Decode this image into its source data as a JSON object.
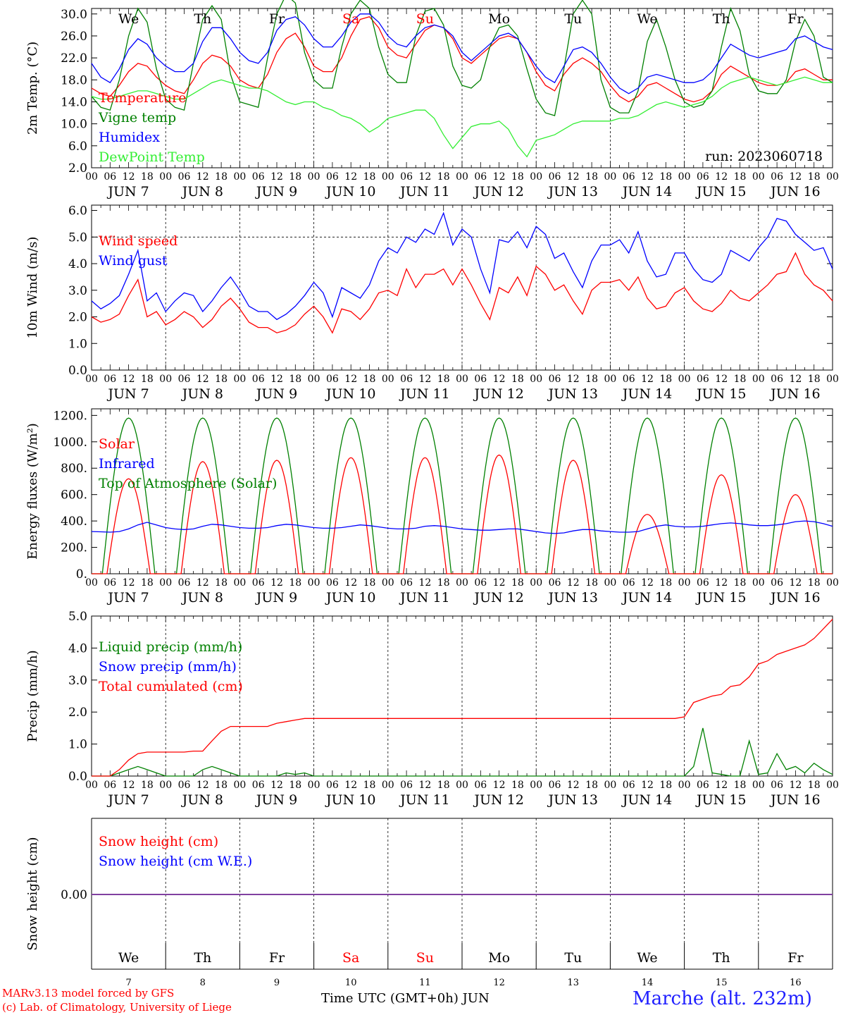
{
  "days": {
    "weekday_labels": [
      "We",
      "Th",
      "Fr",
      "Sa",
      "Su",
      "Mo",
      "Tu",
      "We",
      "Th",
      "Fr"
    ],
    "weekend_flags": [
      false,
      false,
      false,
      true,
      true,
      false,
      false,
      false,
      false,
      false
    ],
    "date_labels": [
      "JUN  7",
      "JUN  8",
      "JUN  9",
      "JUN 10",
      "JUN 11",
      "JUN 12",
      "JUN 13",
      "JUN 14",
      "JUN 15",
      "JUN 16"
    ],
    "day_numbers": [
      "7",
      "8",
      "9",
      "10",
      "11",
      "12",
      "13",
      "14",
      "15",
      "16"
    ],
    "hour_ticks": [
      "00",
      "06",
      "12",
      "18"
    ],
    "final_hour": "00"
  },
  "colors": {
    "red": "#ff0000",
    "green": "#008000",
    "blue": "#0000ff",
    "lightgreen": "#33ee33",
    "purple": "#8040a0"
  },
  "footer": {
    "model": "MARv3.13 model forced by GFS",
    "copyright": "(c) Lab. of Climatology, University of Liege",
    "time_axis": "Time UTC (GMT+0h) JUN",
    "station": "Marche (alt. 232m)"
  },
  "chart_data": [
    {
      "type": "line",
      "ylabel": "2m Temp. (°C)",
      "ylim": [
        2,
        31
      ],
      "yticks": [
        "2.0",
        "6.0",
        "10.0",
        "14.0",
        "18.0",
        "22.0",
        "26.0",
        "30.0"
      ],
      "run_label": "run: 2023060718",
      "x_unit": "hours from 2023-06-07 00 UTC (3-hourly)",
      "series": [
        {
          "name": "Temperature",
          "color": "red",
          "values": [
            16.5,
            15.5,
            15.0,
            17.0,
            19.5,
            21.0,
            20.5,
            18.5,
            17.0,
            16.0,
            15.5,
            18.0,
            21.0,
            22.5,
            22.0,
            20.5,
            18.0,
            17.0,
            16.5,
            19.0,
            23.0,
            25.5,
            26.5,
            24.0,
            20.5,
            19.5,
            19.5,
            22.0,
            26.0,
            29.0,
            29.5,
            27.5,
            24.0,
            22.5,
            22.0,
            24.5,
            27.0,
            28.0,
            27.5,
            25.5,
            22.0,
            21.0,
            22.5,
            24.0,
            25.5,
            26.0,
            25.5,
            23.0,
            19.5,
            17.0,
            16.0,
            19.0,
            21.0,
            22.0,
            21.0,
            19.5,
            17.0,
            15.0,
            14.0,
            15.0,
            17.0,
            17.5,
            16.5,
            15.5,
            14.5,
            14.0,
            14.5,
            16.0,
            19.0,
            20.5,
            19.5,
            18.5,
            17.5,
            17.0,
            17.0,
            17.5,
            19.5,
            20.0,
            19.0,
            18.0,
            18.0
          ]
        },
        {
          "name": "Vigne temp",
          "color": "green",
          "values": [
            15.0,
            13.0,
            12.5,
            18.0,
            26.0,
            31.0,
            28.5,
            20.0,
            14.5,
            13.0,
            12.5,
            21.0,
            29.0,
            31.5,
            29.0,
            19.0,
            14.0,
            13.5,
            13.0,
            22.0,
            30.0,
            33.5,
            32.0,
            23.0,
            18.0,
            16.5,
            16.5,
            24.0,
            30.0,
            32.5,
            31.0,
            24.0,
            19.0,
            17.5,
            17.5,
            26.0,
            30.5,
            31.0,
            28.0,
            20.5,
            17.0,
            16.5,
            18.0,
            24.0,
            27.5,
            28.0,
            26.0,
            20.0,
            14.5,
            12.0,
            11.5,
            20.0,
            30.0,
            32.5,
            30.0,
            18.0,
            13.0,
            12.0,
            12.0,
            16.0,
            25.0,
            29.0,
            24.0,
            18.0,
            14.0,
            13.0,
            13.5,
            16.0,
            24.0,
            31.0,
            27.0,
            19.0,
            16.0,
            15.5,
            15.5,
            18.0,
            25.0,
            29.0,
            26.0,
            18.5,
            17.5
          ]
        },
        {
          "name": "Humidex",
          "color": "blue",
          "values": [
            21.0,
            18.5,
            17.5,
            20.0,
            23.5,
            25.5,
            24.5,
            22.0,
            20.5,
            19.5,
            19.5,
            21.0,
            25.0,
            27.5,
            27.5,
            25.5,
            23.0,
            21.5,
            21.0,
            23.0,
            27.0,
            29.0,
            29.5,
            28.0,
            25.5,
            24.0,
            24.0,
            26.0,
            28.5,
            30.0,
            30.0,
            28.5,
            26.0,
            24.5,
            24.0,
            26.0,
            27.5,
            28.0,
            27.5,
            26.0,
            23.0,
            21.5,
            23.0,
            24.5,
            26.0,
            26.5,
            25.5,
            23.0,
            20.5,
            18.5,
            17.5,
            20.5,
            23.5,
            24.0,
            23.0,
            21.0,
            18.5,
            16.5,
            15.5,
            16.5,
            18.5,
            19.0,
            18.5,
            18.0,
            17.5,
            17.5,
            18.0,
            19.5,
            22.0,
            24.5,
            23.5,
            22.5,
            22.0,
            22.5,
            23.0,
            23.5,
            25.5,
            26.0,
            25.0,
            24.0,
            23.5
          ]
        },
        {
          "name": "DewPoint Temp",
          "color": "lightgreen",
          "values": [
            15.0,
            14.5,
            14.5,
            15.0,
            15.5,
            16.0,
            16.0,
            15.5,
            15.0,
            14.5,
            14.5,
            15.5,
            16.5,
            17.5,
            18.0,
            17.5,
            17.0,
            16.5,
            16.5,
            16.0,
            15.0,
            14.0,
            13.5,
            14.0,
            14.0,
            13.0,
            12.5,
            11.5,
            11.0,
            10.0,
            8.5,
            9.5,
            11.0,
            11.5,
            12.0,
            12.5,
            12.5,
            11.0,
            8.0,
            5.5,
            7.5,
            9.5,
            10.0,
            10.0,
            10.5,
            9.0,
            6.0,
            4.0,
            7.0,
            7.5,
            8.0,
            9.0,
            10.0,
            10.5,
            10.5,
            10.5,
            10.5,
            11.0,
            11.0,
            11.5,
            12.5,
            13.5,
            14.0,
            13.5,
            13.0,
            13.5,
            14.0,
            15.0,
            16.5,
            17.5,
            18.0,
            18.5,
            18.0,
            17.5,
            17.0,
            17.5,
            18.0,
            18.5,
            18.0,
            17.5,
            17.5
          ]
        }
      ]
    },
    {
      "type": "line",
      "ylabel": "10m Wind (m/s)",
      "ylim": [
        0,
        6.2
      ],
      "yticks": [
        "0.0",
        "1.0",
        "2.0",
        "3.0",
        "4.0",
        "5.0",
        "6.0"
      ],
      "ref_line": 5.0,
      "series": [
        {
          "name": "Wind speed",
          "color": "red",
          "values": [
            2.0,
            1.8,
            1.9,
            2.1,
            2.8,
            3.4,
            2.0,
            2.2,
            1.7,
            1.9,
            2.2,
            2.0,
            1.6,
            1.9,
            2.4,
            2.7,
            2.3,
            1.8,
            1.6,
            1.6,
            1.4,
            1.5,
            1.7,
            2.1,
            2.4,
            2.0,
            1.4,
            2.3,
            2.2,
            1.9,
            2.3,
            2.9,
            3.0,
            2.8,
            3.8,
            3.1,
            3.6,
            3.6,
            3.8,
            3.2,
            3.8,
            3.2,
            2.5,
            1.9,
            3.1,
            2.9,
            3.5,
            2.8,
            3.9,
            3.6,
            3.0,
            3.2,
            2.6,
            2.1,
            3.0,
            3.3,
            3.3,
            3.4,
            3.0,
            3.5,
            2.7,
            2.3,
            2.4,
            2.9,
            3.1,
            2.6,
            2.3,
            2.2,
            2.5,
            3.0,
            2.7,
            2.6,
            2.9,
            3.2,
            3.6,
            3.7,
            4.4,
            3.6,
            3.2,
            3.0,
            2.6
          ]
        },
        {
          "name": "Wind gust",
          "color": "blue",
          "values": [
            2.6,
            2.3,
            2.5,
            2.8,
            3.6,
            4.5,
            2.6,
            2.9,
            2.2,
            2.6,
            2.9,
            2.8,
            2.2,
            2.6,
            3.1,
            3.5,
            3.0,
            2.4,
            2.2,
            2.2,
            1.9,
            2.1,
            2.4,
            2.8,
            3.3,
            2.9,
            2.0,
            3.1,
            2.9,
            2.7,
            3.2,
            4.1,
            4.6,
            4.4,
            5.0,
            4.8,
            5.3,
            5.1,
            5.9,
            4.7,
            5.3,
            5.0,
            3.8,
            2.9,
            4.9,
            4.8,
            5.2,
            4.6,
            5.4,
            5.1,
            4.2,
            4.4,
            3.7,
            3.1,
            4.1,
            4.7,
            4.7,
            4.9,
            4.4,
            5.2,
            4.1,
            3.5,
            3.6,
            4.4,
            4.4,
            3.8,
            3.4,
            3.3,
            3.6,
            4.5,
            4.3,
            4.1,
            4.6,
            5.0,
            5.7,
            5.6,
            5.1,
            4.8,
            4.5,
            4.6,
            3.8
          ]
        }
      ]
    },
    {
      "type": "line",
      "ylabel": "Energy fluxes (W/m²)",
      "ylim": [
        0,
        1250
      ],
      "yticks": [
        "0.",
        "200.",
        "400.",
        "600.",
        "800.",
        "1000.",
        "1200."
      ],
      "series": [
        {
          "name": "Solar",
          "color": "red",
          "curve": "daily_bell",
          "daily_peaks": [
            720,
            850,
            860,
            880,
            880,
            900,
            860,
            450,
            750,
            600
          ],
          "note_peaks_in_w_per_m2": true
        },
        {
          "name": "Infrared",
          "color": "blue",
          "values": [
            320,
            318,
            315,
            320,
            340,
            370,
            390,
            370,
            350,
            340,
            335,
            340,
            360,
            375,
            370,
            360,
            350,
            345,
            345,
            350,
            365,
            375,
            370,
            360,
            350,
            345,
            345,
            350,
            360,
            370,
            365,
            355,
            345,
            340,
            340,
            345,
            360,
            365,
            360,
            350,
            340,
            335,
            330,
            330,
            335,
            340,
            340,
            330,
            320,
            310,
            305,
            310,
            325,
            335,
            335,
            325,
            320,
            315,
            315,
            320,
            340,
            360,
            370,
            360,
            355,
            355,
            360,
            370,
            380,
            385,
            380,
            370,
            365,
            365,
            370,
            380,
            395,
            400,
            395,
            380,
            360
          ]
        },
        {
          "name": "Top of Atmosphere (Solar)",
          "color": "green",
          "curve": "daily_bell",
          "daily_peaks": [
            1180,
            1180,
            1180,
            1180,
            1180,
            1180,
            1180,
            1180,
            1180,
            1180
          ]
        }
      ]
    },
    {
      "type": "line",
      "ylabel": "Precip (mm/h)",
      "ylim": [
        0,
        5.0
      ],
      "yticks": [
        "0.0",
        "1.0",
        "2.0",
        "3.0",
        "4.0",
        "5.0"
      ],
      "series": [
        {
          "name": "Liquid precip (mm/h)",
          "color": "green",
          "values": [
            0,
            0,
            0,
            0.1,
            0.2,
            0.3,
            0.2,
            0.1,
            0,
            0,
            0,
            0,
            0.2,
            0.3,
            0.2,
            0.1,
            0,
            0,
            0,
            0,
            0,
            0.1,
            0.05,
            0.1,
            0,
            0,
            0,
            0,
            0,
            0,
            0,
            0,
            0,
            0,
            0,
            0,
            0,
            0,
            0,
            0,
            0,
            0,
            0,
            0,
            0,
            0,
            0,
            0,
            0,
            0,
            0,
            0,
            0,
            0,
            0,
            0,
            0,
            0,
            0,
            0,
            0,
            0,
            0,
            0,
            0,
            0.3,
            1.5,
            0.1,
            0.05,
            0,
            0,
            1.1,
            0.05,
            0.1,
            0.7,
            0.2,
            0.3,
            0.1,
            0.4,
            0.2,
            0.05
          ]
        },
        {
          "name": "Snow precip (mm/h)",
          "color": "blue",
          "values": []
        },
        {
          "name": "Total cumulated (cm)",
          "color": "red",
          "values": [
            0,
            0,
            0,
            0.2,
            0.5,
            0.7,
            0.75,
            0.75,
            0.75,
            0.75,
            0.75,
            0.78,
            0.78,
            1.1,
            1.4,
            1.55,
            1.55,
            1.55,
            1.55,
            1.55,
            1.65,
            1.7,
            1.75,
            1.8,
            1.8,
            1.8,
            1.8,
            1.8,
            1.8,
            1.8,
            1.8,
            1.8,
            1.8,
            1.8,
            1.8,
            1.8,
            1.8,
            1.8,
            1.8,
            1.8,
            1.8,
            1.8,
            1.8,
            1.8,
            1.8,
            1.8,
            1.8,
            1.8,
            1.8,
            1.8,
            1.8,
            1.8,
            1.8,
            1.8,
            1.8,
            1.8,
            1.8,
            1.8,
            1.8,
            1.8,
            1.8,
            1.8,
            1.8,
            1.8,
            1.85,
            2.3,
            2.4,
            2.5,
            2.55,
            2.8,
            2.85,
            3.1,
            3.5,
            3.6,
            3.8,
            3.9,
            4.0,
            4.1,
            4.3,
            4.6,
            4.9
          ]
        }
      ]
    },
    {
      "type": "line",
      "ylabel": "Snow height (cm)",
      "ytick_label": "0.00",
      "series": [
        {
          "name": "Snow height (cm)",
          "color": "red",
          "constant": 0.0
        },
        {
          "name": "Snow height (cm W.E.)",
          "color": "blue",
          "constant": 0.0
        }
      ]
    }
  ]
}
